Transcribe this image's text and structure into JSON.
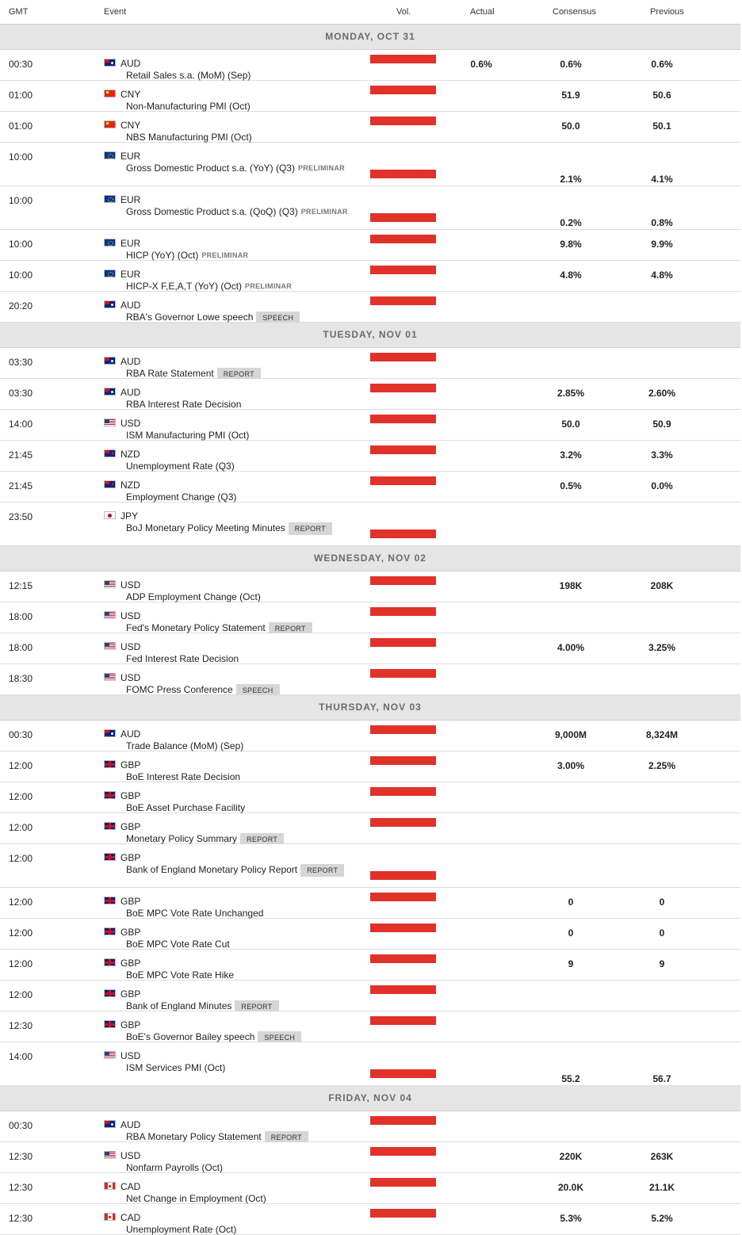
{
  "headers": {
    "gmt": "GMT",
    "event": "Event",
    "vol": "Vol.",
    "actual": "Actual",
    "consensus": "Consensus",
    "previous": "Previous"
  },
  "days": [
    {
      "label": "MONDAY, OCT 31",
      "events": [
        {
          "time": "00:30",
          "flag": "au",
          "currency": "AUD",
          "name": "Retail Sales s.a. (MoM) (Sep)",
          "actual": "0.6%",
          "consensus": "0.6%",
          "previous": "0.6%"
        },
        {
          "time": "01:00",
          "flag": "cn",
          "currency": "CNY",
          "name": "Non-Manufacturing PMI (Oct)",
          "actual": "",
          "consensus": "51.9",
          "previous": "50.6"
        },
        {
          "time": "01:00",
          "flag": "cn",
          "currency": "CNY",
          "name": "NBS Manufacturing PMI (Oct)",
          "actual": "",
          "consensus": "50.0",
          "previous": "50.1"
        },
        {
          "time": "10:00",
          "flag": "eu",
          "currency": "EUR",
          "name": "Gross Domestic Product s.a. (YoY) (Q3)",
          "tag": "PRELIMINAR",
          "tall": true,
          "actual": "",
          "consensus": "2.1%",
          "previous": "4.1%"
        },
        {
          "time": "10:00",
          "flag": "eu",
          "currency": "EUR",
          "name": "Gross Domestic Product s.a. (QoQ) (Q3)",
          "tag": "PRELIMINAR",
          "tall": true,
          "actual": "",
          "consensus": "0.2%",
          "previous": "0.8%"
        },
        {
          "time": "10:00",
          "flag": "eu",
          "currency": "EUR",
          "name": "HICP (YoY) (Oct)",
          "tag": "PRELIMINAR",
          "actual": "",
          "consensus": "9.8%",
          "previous": "9.9%"
        },
        {
          "time": "10:00",
          "flag": "eu",
          "currency": "EUR",
          "name": "HICP-X F,E,A,T (YoY) (Oct)",
          "tag": "PRELIMINAR",
          "actual": "",
          "consensus": "4.8%",
          "previous": "4.8%"
        },
        {
          "time": "20:20",
          "flag": "au",
          "currency": "AUD",
          "name": "RBA's Governor Lowe speech",
          "badge": "SPEECH",
          "actual": "",
          "consensus": "",
          "previous": ""
        }
      ]
    },
    {
      "label": "TUESDAY, NOV 01",
      "events": [
        {
          "time": "03:30",
          "flag": "au",
          "currency": "AUD",
          "name": "RBA Rate Statement",
          "badge": "REPORT",
          "actual": "",
          "consensus": "",
          "previous": ""
        },
        {
          "time": "03:30",
          "flag": "au",
          "currency": "AUD",
          "name": "RBA Interest Rate Decision",
          "actual": "",
          "consensus": "2.85%",
          "previous": "2.60%"
        },
        {
          "time": "14:00",
          "flag": "us",
          "currency": "USD",
          "name": "ISM Manufacturing PMI (Oct)",
          "actual": "",
          "consensus": "50.0",
          "previous": "50.9"
        },
        {
          "time": "21:45",
          "flag": "nz",
          "currency": "NZD",
          "name": "Unemployment Rate (Q3)",
          "actual": "",
          "consensus": "3.2%",
          "previous": "3.3%"
        },
        {
          "time": "21:45",
          "flag": "nz",
          "currency": "NZD",
          "name": "Employment Change (Q3)",
          "actual": "",
          "consensus": "0.5%",
          "previous": "0.0%"
        },
        {
          "time": "23:50",
          "flag": "jp",
          "currency": "JPY",
          "name": "BoJ Monetary Policy Meeting Minutes",
          "badge": "REPORT",
          "tall": true,
          "actual": "",
          "consensus": "",
          "previous": ""
        }
      ]
    },
    {
      "label": "WEDNESDAY, NOV 02",
      "events": [
        {
          "time": "12:15",
          "flag": "us",
          "currency": "USD",
          "name": "ADP Employment Change (Oct)",
          "actual": "",
          "consensus": "198K",
          "previous": "208K"
        },
        {
          "time": "18:00",
          "flag": "us",
          "currency": "USD",
          "name": "Fed's Monetary Policy Statement",
          "badge": "REPORT",
          "actual": "",
          "consensus": "",
          "previous": ""
        },
        {
          "time": "18:00",
          "flag": "us",
          "currency": "USD",
          "name": "Fed Interest Rate Decision",
          "actual": "",
          "consensus": "4.00%",
          "previous": "3.25%"
        },
        {
          "time": "18:30",
          "flag": "us",
          "currency": "USD",
          "name": "FOMC Press Conference",
          "badge": "SPEECH",
          "actual": "",
          "consensus": "",
          "previous": ""
        }
      ]
    },
    {
      "label": "THURSDAY, NOV 03",
      "events": [
        {
          "time": "00:30",
          "flag": "au",
          "currency": "AUD",
          "name": "Trade Balance (MoM) (Sep)",
          "actual": "",
          "consensus": "9,000M",
          "previous": "8,324M"
        },
        {
          "time": "12:00",
          "flag": "gb",
          "currency": "GBP",
          "name": "BoE Interest Rate Decision",
          "actual": "",
          "consensus": "3.00%",
          "previous": "2.25%"
        },
        {
          "time": "12:00",
          "flag": "gb",
          "currency": "GBP",
          "name": "BoE Asset Purchase Facility",
          "actual": "",
          "consensus": "",
          "previous": ""
        },
        {
          "time": "12:00",
          "flag": "gb",
          "currency": "GBP",
          "name": "Monetary Policy Summary",
          "badge": "REPORT",
          "actual": "",
          "consensus": "",
          "previous": ""
        },
        {
          "time": "12:00",
          "flag": "gb",
          "currency": "GBP",
          "name": "Bank of England Monetary Policy Report",
          "badge": "REPORT",
          "tall": true,
          "actual": "",
          "consensus": "",
          "previous": ""
        },
        {
          "time": "12:00",
          "flag": "gb",
          "currency": "GBP",
          "name": "BoE MPC Vote Rate Unchanged",
          "actual": "",
          "consensus": "0",
          "previous": "0"
        },
        {
          "time": "12:00",
          "flag": "gb",
          "currency": "GBP",
          "name": "BoE MPC Vote Rate Cut",
          "actual": "",
          "consensus": "0",
          "previous": "0"
        },
        {
          "time": "12:00",
          "flag": "gb",
          "currency": "GBP",
          "name": "BoE MPC Vote Rate Hike",
          "actual": "",
          "consensus": "9",
          "previous": "9"
        },
        {
          "time": "12:00",
          "flag": "gb",
          "currency": "GBP",
          "name": "Bank of England Minutes",
          "badge": "REPORT",
          "actual": "",
          "consensus": "",
          "previous": ""
        },
        {
          "time": "12:30",
          "flag": "gb",
          "currency": "GBP",
          "name": "BoE's Governor Bailey speech",
          "badge": "SPEECH",
          "actual": "",
          "consensus": "",
          "previous": ""
        },
        {
          "time": "14:00",
          "flag": "us",
          "currency": "USD",
          "name": "ISM Services PMI (Oct)",
          "tall": true,
          "actual": "",
          "consensus": "55.2",
          "previous": "56.7"
        }
      ]
    },
    {
      "label": "FRIDAY, NOV 04",
      "events": [
        {
          "time": "00:30",
          "flag": "au",
          "currency": "AUD",
          "name": "RBA Monetary Policy Statement",
          "badge": "REPORT",
          "actual": "",
          "consensus": "",
          "previous": ""
        },
        {
          "time": "12:30",
          "flag": "us",
          "currency": "USD",
          "name": "Nonfarm Payrolls (Oct)",
          "actual": "",
          "consensus": "220K",
          "previous": "263K"
        },
        {
          "time": "12:30",
          "flag": "ca",
          "currency": "CAD",
          "name": "Net Change in Employment (Oct)",
          "actual": "",
          "consensus": "20.0K",
          "previous": "21.1K"
        },
        {
          "time": "12:30",
          "flag": "ca",
          "currency": "CAD",
          "name": "Unemployment Rate (Oct)",
          "actual": "",
          "consensus": "5.3%",
          "previous": "5.2%"
        }
      ]
    }
  ],
  "colors": {
    "volume_bar": "#e13229",
    "day_header_bg": "#e5e5e5"
  }
}
